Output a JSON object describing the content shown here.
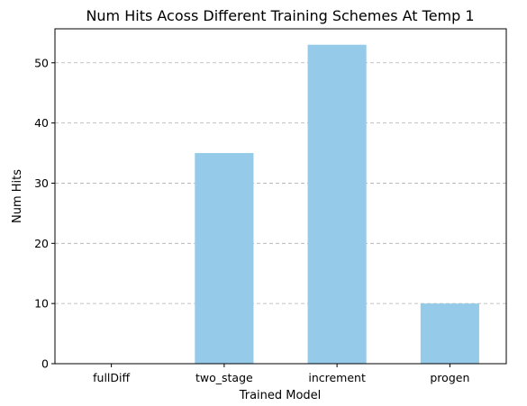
{
  "chart_data": {
    "type": "bar",
    "title": "Num Hits Acoss Different Training Schemes At Temp 1",
    "xlabel": "Trained Model",
    "ylabel": "Num Hits",
    "categories": [
      "fullDiff",
      "two_stage",
      "increment",
      "progen"
    ],
    "values": [
      0,
      35,
      53,
      10
    ],
    "ylim": [
      0,
      55.65
    ],
    "yticks": [
      0,
      10,
      20,
      30,
      40,
      50
    ],
    "grid": true,
    "bar_color": "#95cbe8"
  }
}
